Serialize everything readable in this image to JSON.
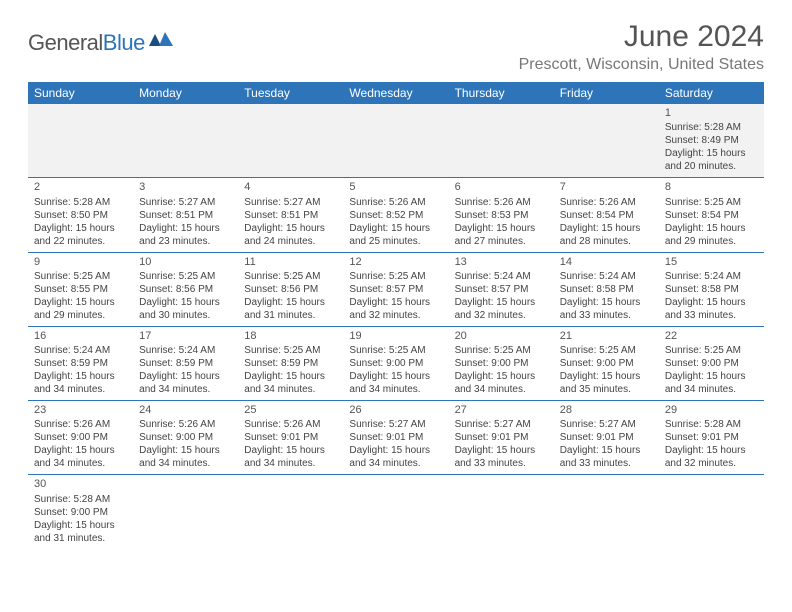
{
  "brand": {
    "part1": "General",
    "part2": "Blue"
  },
  "title": "June 2024",
  "location": "Prescott, Wisconsin, United States",
  "calendar": {
    "type": "table",
    "header_bg": "#2d74b8",
    "header_fg": "#ffffff",
    "row_border_color": "#2d74b8",
    "alt_row_bg": "#f2f2f2",
    "text_color": "#444444",
    "fontsize_header": 12,
    "fontsize_body": 10,
    "columns": [
      "Sunday",
      "Monday",
      "Tuesday",
      "Wednesday",
      "Thursday",
      "Friday",
      "Saturday"
    ],
    "weeks": [
      [
        null,
        null,
        null,
        null,
        null,
        null,
        {
          "n": "1",
          "sr": "Sunrise: 5:28 AM",
          "ss": "Sunset: 8:49 PM",
          "dl": "Daylight: 15 hours and 20 minutes."
        }
      ],
      [
        {
          "n": "2",
          "sr": "Sunrise: 5:28 AM",
          "ss": "Sunset: 8:50 PM",
          "dl": "Daylight: 15 hours and 22 minutes."
        },
        {
          "n": "3",
          "sr": "Sunrise: 5:27 AM",
          "ss": "Sunset: 8:51 PM",
          "dl": "Daylight: 15 hours and 23 minutes."
        },
        {
          "n": "4",
          "sr": "Sunrise: 5:27 AM",
          "ss": "Sunset: 8:51 PM",
          "dl": "Daylight: 15 hours and 24 minutes."
        },
        {
          "n": "5",
          "sr": "Sunrise: 5:26 AM",
          "ss": "Sunset: 8:52 PM",
          "dl": "Daylight: 15 hours and 25 minutes."
        },
        {
          "n": "6",
          "sr": "Sunrise: 5:26 AM",
          "ss": "Sunset: 8:53 PM",
          "dl": "Daylight: 15 hours and 27 minutes."
        },
        {
          "n": "7",
          "sr": "Sunrise: 5:26 AM",
          "ss": "Sunset: 8:54 PM",
          "dl": "Daylight: 15 hours and 28 minutes."
        },
        {
          "n": "8",
          "sr": "Sunrise: 5:25 AM",
          "ss": "Sunset: 8:54 PM",
          "dl": "Daylight: 15 hours and 29 minutes."
        }
      ],
      [
        {
          "n": "9",
          "sr": "Sunrise: 5:25 AM",
          "ss": "Sunset: 8:55 PM",
          "dl": "Daylight: 15 hours and 29 minutes."
        },
        {
          "n": "10",
          "sr": "Sunrise: 5:25 AM",
          "ss": "Sunset: 8:56 PM",
          "dl": "Daylight: 15 hours and 30 minutes."
        },
        {
          "n": "11",
          "sr": "Sunrise: 5:25 AM",
          "ss": "Sunset: 8:56 PM",
          "dl": "Daylight: 15 hours and 31 minutes."
        },
        {
          "n": "12",
          "sr": "Sunrise: 5:25 AM",
          "ss": "Sunset: 8:57 PM",
          "dl": "Daylight: 15 hours and 32 minutes."
        },
        {
          "n": "13",
          "sr": "Sunrise: 5:24 AM",
          "ss": "Sunset: 8:57 PM",
          "dl": "Daylight: 15 hours and 32 minutes."
        },
        {
          "n": "14",
          "sr": "Sunrise: 5:24 AM",
          "ss": "Sunset: 8:58 PM",
          "dl": "Daylight: 15 hours and 33 minutes."
        },
        {
          "n": "15",
          "sr": "Sunrise: 5:24 AM",
          "ss": "Sunset: 8:58 PM",
          "dl": "Daylight: 15 hours and 33 minutes."
        }
      ],
      [
        {
          "n": "16",
          "sr": "Sunrise: 5:24 AM",
          "ss": "Sunset: 8:59 PM",
          "dl": "Daylight: 15 hours and 34 minutes."
        },
        {
          "n": "17",
          "sr": "Sunrise: 5:24 AM",
          "ss": "Sunset: 8:59 PM",
          "dl": "Daylight: 15 hours and 34 minutes."
        },
        {
          "n": "18",
          "sr": "Sunrise: 5:25 AM",
          "ss": "Sunset: 8:59 PM",
          "dl": "Daylight: 15 hours and 34 minutes."
        },
        {
          "n": "19",
          "sr": "Sunrise: 5:25 AM",
          "ss": "Sunset: 9:00 PM",
          "dl": "Daylight: 15 hours and 34 minutes."
        },
        {
          "n": "20",
          "sr": "Sunrise: 5:25 AM",
          "ss": "Sunset: 9:00 PM",
          "dl": "Daylight: 15 hours and 34 minutes."
        },
        {
          "n": "21",
          "sr": "Sunrise: 5:25 AM",
          "ss": "Sunset: 9:00 PM",
          "dl": "Daylight: 15 hours and 35 minutes."
        },
        {
          "n": "22",
          "sr": "Sunrise: 5:25 AM",
          "ss": "Sunset: 9:00 PM",
          "dl": "Daylight: 15 hours and 34 minutes."
        }
      ],
      [
        {
          "n": "23",
          "sr": "Sunrise: 5:26 AM",
          "ss": "Sunset: 9:00 PM",
          "dl": "Daylight: 15 hours and 34 minutes."
        },
        {
          "n": "24",
          "sr": "Sunrise: 5:26 AM",
          "ss": "Sunset: 9:00 PM",
          "dl": "Daylight: 15 hours and 34 minutes."
        },
        {
          "n": "25",
          "sr": "Sunrise: 5:26 AM",
          "ss": "Sunset: 9:01 PM",
          "dl": "Daylight: 15 hours and 34 minutes."
        },
        {
          "n": "26",
          "sr": "Sunrise: 5:27 AM",
          "ss": "Sunset: 9:01 PM",
          "dl": "Daylight: 15 hours and 34 minutes."
        },
        {
          "n": "27",
          "sr": "Sunrise: 5:27 AM",
          "ss": "Sunset: 9:01 PM",
          "dl": "Daylight: 15 hours and 33 minutes."
        },
        {
          "n": "28",
          "sr": "Sunrise: 5:27 AM",
          "ss": "Sunset: 9:01 PM",
          "dl": "Daylight: 15 hours and 33 minutes."
        },
        {
          "n": "29",
          "sr": "Sunrise: 5:28 AM",
          "ss": "Sunset: 9:01 PM",
          "dl": "Daylight: 15 hours and 32 minutes."
        }
      ],
      [
        {
          "n": "30",
          "sr": "Sunrise: 5:28 AM",
          "ss": "Sunset: 9:00 PM",
          "dl": "Daylight: 15 hours and 31 minutes."
        },
        null,
        null,
        null,
        null,
        null,
        null
      ]
    ]
  }
}
